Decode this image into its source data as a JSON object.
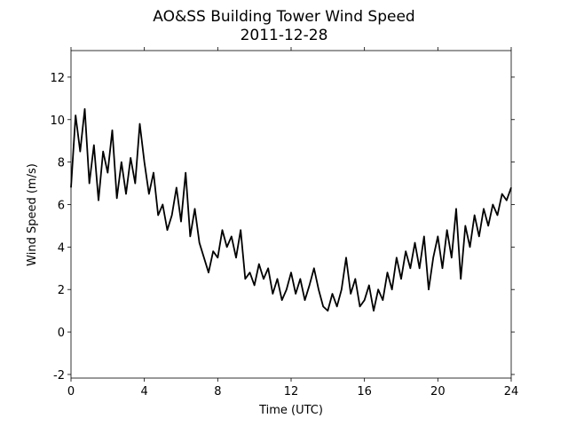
{
  "chart_data": {
    "type": "line",
    "title": "AO&SS Building Tower Wind Speed",
    "subtitle": "2011-12-28",
    "x_label": "Time (UTC)",
    "y_label": "Wind Speed (m/s)",
    "x": [
      0,
      0.25,
      0.5,
      0.75,
      1,
      1.25,
      1.5,
      1.75,
      2,
      2.25,
      2.5,
      2.75,
      3,
      3.25,
      3.5,
      3.75,
      4,
      4.25,
      4.5,
      4.75,
      5,
      5.25,
      5.5,
      5.75,
      6,
      6.25,
      6.5,
      6.75,
      7,
      7.25,
      7.5,
      7.75,
      8,
      8.25,
      8.5,
      8.75,
      9,
      9.25,
      9.5,
      9.75,
      10,
      10.25,
      10.5,
      10.75,
      11,
      11.25,
      11.5,
      11.75,
      12,
      12.25,
      12.5,
      12.75,
      13,
      13.25,
      13.5,
      13.75,
      14,
      14.25,
      14.5,
      14.75,
      15,
      15.25,
      15.5,
      15.75,
      16,
      16.25,
      16.5,
      16.75,
      17,
      17.25,
      17.5,
      17.75,
      18,
      18.25,
      18.5,
      18.75,
      19,
      19.25,
      19.5,
      19.75,
      20,
      20.25,
      20.5,
      20.75,
      21,
      21.25,
      21.5,
      21.75,
      22,
      22.25,
      22.5,
      22.75,
      23,
      23.25,
      23.5,
      23.75,
      24
    ],
    "values": [
      6.8,
      10.2,
      8.5,
      10.5,
      7.0,
      8.8,
      6.2,
      8.5,
      7.5,
      9.5,
      6.3,
      8.0,
      6.5,
      8.2,
      7.0,
      9.8,
      8.0,
      6.5,
      7.5,
      5.5,
      6.0,
      4.8,
      5.5,
      6.8,
      5.2,
      7.5,
      4.5,
      5.8,
      4.2,
      3.5,
      2.8,
      3.8,
      3.5,
      4.8,
      4.0,
      4.5,
      3.5,
      4.8,
      2.5,
      2.8,
      2.2,
      3.2,
      2.5,
      3.0,
      1.8,
      2.5,
      1.5,
      2.0,
      2.8,
      1.8,
      2.5,
      1.5,
      2.2,
      3.0,
      2.0,
      1.2,
      1.0,
      1.8,
      1.2,
      2.0,
      3.5,
      1.8,
      2.5,
      1.2,
      1.5,
      2.2,
      1.0,
      2.0,
      1.5,
      2.8,
      2.0,
      3.5,
      2.5,
      3.8,
      3.0,
      4.2,
      3.0,
      4.5,
      2.0,
      3.5,
      4.5,
      3.0,
      4.8,
      3.5,
      5.8,
      2.5,
      5.0,
      4.0,
      5.5,
      4.5,
      5.8,
      5.0,
      6.0,
      5.5,
      6.5,
      6.2,
      6.8
    ],
    "color": "#000000",
    "xlim": [
      0,
      24
    ],
    "xticks": [
      0,
      4,
      8,
      12,
      16,
      20,
      24
    ],
    "ylim": [
      -2.17,
      13.25
    ],
    "yticks": [
      -2,
      0,
      2,
      4,
      6,
      8,
      10,
      12
    ],
    "grid": false
  }
}
